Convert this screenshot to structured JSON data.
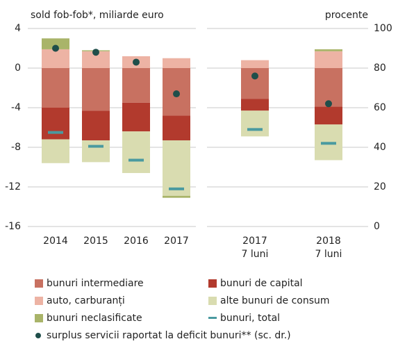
{
  "chart_data": {
    "type": "bar",
    "title": "sold fob-fob*, miliarde euro",
    "y2_label": "procente",
    "categories": [
      "2014",
      "2015",
      "2016",
      "2017",
      "2017\n7 luni",
      "2018\n7 luni"
    ],
    "stacked": true,
    "series": [
      {
        "name": "bunuri intermediare",
        "color": "#c87161",
        "values": [
          -4.0,
          -4.3,
          -3.5,
          -4.8,
          -3.1,
          -3.9
        ]
      },
      {
        "name": "bunuri de capital",
        "color": "#b23a2d",
        "values": [
          -3.2,
          -3.0,
          -2.9,
          -2.5,
          -1.2,
          -1.8
        ]
      },
      {
        "name": "auto, carburanți",
        "color": "#edb3a4",
        "values": [
          1.9,
          1.7,
          1.2,
          1.0,
          0.8,
          1.7
        ]
      },
      {
        "name": "alte bunuri de consum",
        "color": "#d9dcb0",
        "values": [
          -2.4,
          -2.2,
          -4.2,
          -5.6,
          -2.6,
          -3.6
        ]
      },
      {
        "name": "bunuri neclasificate",
        "color": "#a9b469",
        "values": [
          1.1,
          0.1,
          0,
          -0.2,
          0,
          0.2
        ]
      },
      {
        "name": "bunuri, total",
        "color": "#4a9aa0",
        "type": "dash",
        "values": [
          -6.5,
          -7.9,
          -9.3,
          -12.2,
          -6.2,
          -7.6
        ]
      },
      {
        "name": "surplus servicii raportat la deficit bunuri** (sc. dr.)",
        "color": "#1f4e4a",
        "type": "dot",
        "axis": "y2",
        "values": [
          90,
          88,
          83,
          67,
          76,
          62
        ]
      }
    ],
    "ylim": [
      -16,
      4
    ],
    "yticks": [
      -16,
      -12,
      -8,
      -4,
      0,
      4
    ],
    "y2lim": [
      0,
      100
    ],
    "y2ticks": [
      0,
      20,
      40,
      60,
      80,
      100
    ],
    "grid": true
  }
}
